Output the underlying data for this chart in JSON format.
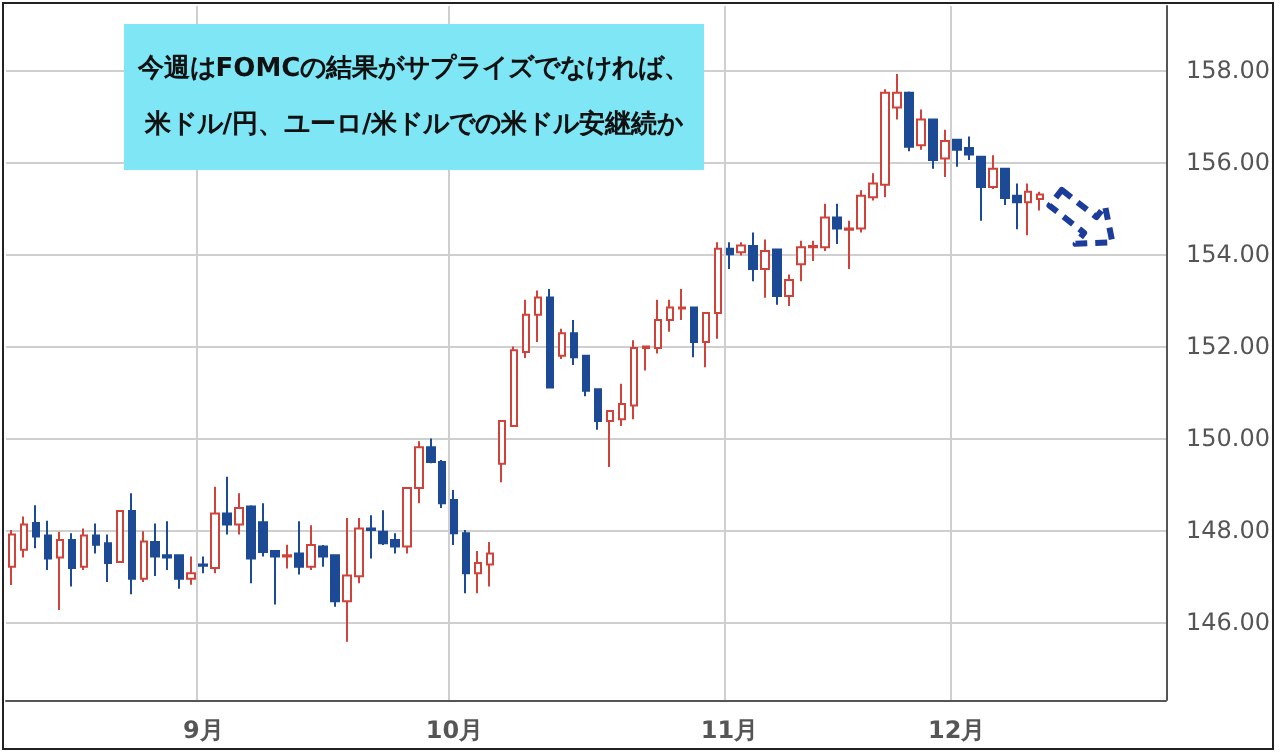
{
  "chart_data": {
    "type": "candlestick",
    "annotations": [
      "今週はFOMCの結果がサプライズでなければ、",
      "米ドル/円、ユーロ/米ドルでの米ドル安継続か"
    ],
    "categories": [
      null,
      null,
      null,
      null,
      null,
      null,
      null,
      null,
      null,
      null,
      null,
      null,
      null,
      null,
      null,
      null,
      "9月",
      null,
      null,
      null,
      null,
      null,
      null,
      null,
      null,
      null,
      null,
      null,
      null,
      null,
      null,
      null,
      null,
      null,
      null,
      null,
      null,
      "10月",
      null,
      null,
      null,
      null,
      null,
      null,
      null,
      null,
      null,
      null,
      null,
      null,
      null,
      null,
      null,
      null,
      null,
      null,
      null,
      null,
      null,
      null,
      "11月",
      null,
      null,
      null,
      null,
      null,
      null,
      null,
      null,
      null,
      null,
      null,
      null,
      null,
      null,
      null,
      null,
      null,
      null,
      "12月",
      null,
      null,
      null,
      null,
      null,
      null,
      null,
      null,
      null,
      null,
      null,
      null,
      null,
      null,
      null,
      null,
      null
    ],
    "colors": [
      "#d0433a",
      "#d0433a",
      "#1c4a94",
      "#1c4a94",
      "#d0433a",
      "#1c4a94",
      "#d0433a",
      "#1c4a94",
      "#1c4a94",
      "#d0433a",
      "#1c4a94",
      "#d0433a",
      "#1c4a94",
      "#1c4a94",
      "#1c4a94",
      "#d0433a",
      "#1c4a94",
      "#d0433a",
      "#1c4a94",
      "#d0433a",
      "#1c4a94",
      "#1c4a94",
      "#1c4a94",
      "#d0433a",
      "#1c4a94",
      "#d0433a",
      "#1c4a94",
      "#1c4a94",
      "#d0433a",
      "#d0433a",
      "#1c4a94",
      "#1c4a94",
      "#1c4a94",
      "#d0433a",
      "#d0433a",
      "#1c4a94",
      "#1c4a94",
      "#1c4a94",
      "#1c4a94",
      "#d0433a",
      "#d0433a",
      "#d0433a",
      "#d0433a",
      "#d0433a",
      "#d0433a",
      "#1c4a94",
      "#d0433a",
      "#1c4a94",
      "#1c4a94",
      "#1c4a94",
      "#d0433a",
      "#d0433a",
      "#d0433a",
      "#d0433a",
      "#d0433a",
      "#d0433a",
      "#d0433a",
      "#1c4a94",
      "#d0433a",
      "#d0433a",
      "#1c4a94",
      "#d0433a",
      "#1c4a94",
      "#d0433a",
      "#1c4a94",
      "#d0433a",
      "#d0433a",
      "#d0433a",
      "#d0433a",
      "#1c4a94",
      "#d0433a",
      "#d0433a",
      "#d0433a",
      "#d0433a",
      "#d0433a",
      "#1c4a94",
      "#d0433a",
      "#1c4a94",
      "#d0433a",
      "#1c4a94",
      "#1c4a94",
      "#1c4a94",
      "#d0433a",
      "#1c4a94",
      "#1c4a94",
      "#d0433a",
      "#d0433a",
      null,
      null,
      null,
      null,
      null,
      null,
      null,
      null,
      null,
      null
    ],
    "ohlc": [
      [
        147.2,
        148.0,
        146.8,
        147.9
      ],
      [
        147.57,
        148.29,
        147.4,
        148.12
      ],
      [
        148.15,
        148.54,
        147.6,
        147.86
      ],
      [
        147.88,
        148.2,
        147.13,
        147.38
      ],
      [
        147.4,
        147.96,
        146.26,
        147.78
      ],
      [
        147.78,
        147.93,
        146.77,
        147.17
      ],
      [
        147.2,
        148.03,
        147.13,
        147.88
      ],
      [
        147.88,
        148.14,
        147.49,
        147.68
      ],
      [
        147.71,
        147.9,
        146.87,
        147.28
      ],
      [
        147.3,
        148.41,
        147.28,
        148.41
      ],
      [
        148.41,
        148.8,
        146.6,
        146.94
      ],
      [
        146.94,
        147.97,
        146.87,
        147.75
      ],
      [
        147.74,
        148.14,
        147.0,
        147.42
      ],
      [
        147.45,
        148.19,
        147.13,
        147.4
      ],
      [
        147.45,
        147.45,
        146.72,
        146.94
      ],
      [
        146.94,
        147.42,
        146.81,
        147.06
      ],
      [
        147.25,
        147.42,
        147.06,
        147.22
      ],
      [
        147.17,
        148.94,
        147.06,
        148.36
      ],
      [
        148.36,
        149.16,
        147.9,
        148.12
      ],
      [
        148.12,
        148.8,
        147.9,
        148.48
      ],
      [
        148.51,
        148.54,
        146.84,
        147.38
      ],
      [
        148.17,
        148.58,
        147.42,
        147.52
      ],
      [
        147.54,
        147.54,
        146.38,
        147.42
      ],
      [
        147.42,
        147.68,
        147.16,
        147.45
      ],
      [
        147.49,
        148.19,
        147.03,
        147.2
      ],
      [
        147.2,
        148.1,
        147.13,
        147.67
      ],
      [
        147.64,
        147.67,
        147.2,
        147.42
      ],
      [
        147.45,
        147.45,
        146.33,
        146.45
      ],
      [
        146.45,
        148.26,
        145.57,
        147.01
      ],
      [
        146.99,
        148.26,
        146.84,
        148.03
      ],
      [
        148.03,
        148.32,
        147.38,
        148.0
      ],
      [
        147.96,
        148.43,
        147.67,
        147.71
      ],
      [
        147.78,
        147.93,
        147.49,
        147.64
      ],
      [
        147.64,
        148.91,
        147.49,
        148.91
      ],
      [
        148.91,
        149.93,
        148.58,
        149.8
      ],
      [
        149.8,
        149.99,
        149.45,
        149.48
      ],
      [
        149.48,
        149.52,
        148.48,
        148.58
      ],
      [
        148.65,
        148.87,
        147.67,
        147.93
      ],
      [
        147.93,
        148.0,
        146.62,
        147.06
      ],
      [
        147.06,
        147.54,
        146.62,
        147.28
      ],
      [
        147.25,
        147.74,
        146.77,
        147.49
      ],
      [
        149.44,
        150.37,
        149.04,
        150.37
      ],
      [
        150.26,
        151.99,
        150.26,
        151.91
      ],
      [
        151.87,
        153.01,
        151.74,
        152.68
      ],
      [
        152.68,
        153.21,
        152.09,
        153.06
      ],
      [
        153.06,
        153.24,
        151.1,
        151.1
      ],
      [
        151.79,
        152.38,
        151.72,
        152.28
      ],
      [
        152.28,
        152.57,
        151.59,
        151.76
      ],
      [
        151.79,
        151.79,
        150.91,
        151.03
      ],
      [
        151.06,
        151.06,
        150.18,
        150.37
      ],
      [
        150.37,
        150.59,
        149.37,
        150.59
      ],
      [
        150.41,
        151.18,
        150.26,
        150.74
      ],
      [
        150.71,
        152.13,
        150.41,
        151.96
      ],
      [
        151.96,
        151.99,
        151.47,
        151.99
      ],
      [
        151.96,
        153.01,
        151.84,
        152.57
      ],
      [
        152.57,
        153.01,
        152.31,
        152.84
      ],
      [
        152.82,
        153.24,
        152.57,
        152.84
      ],
      [
        152.84,
        152.84,
        151.76,
        152.09
      ],
      [
        152.09,
        152.72,
        151.54,
        152.72
      ],
      [
        152.72,
        154.26,
        152.16,
        154.12
      ],
      [
        154.12,
        154.26,
        153.68,
        154.0
      ],
      [
        154.04,
        154.26,
        153.97,
        154.19
      ],
      [
        154.18,
        154.47,
        153.41,
        153.68
      ],
      [
        153.68,
        154.32,
        153.05,
        154.07
      ],
      [
        154.1,
        154.1,
        152.9,
        153.09
      ],
      [
        153.09,
        153.56,
        152.87,
        153.44
      ],
      [
        153.78,
        154.29,
        153.41,
        154.15
      ],
      [
        154.15,
        154.29,
        153.85,
        154.18
      ],
      [
        154.15,
        155.1,
        154.07,
        154.8
      ],
      [
        154.8,
        155.1,
        154.22,
        154.56
      ],
      [
        154.53,
        154.73,
        153.68,
        154.56
      ],
      [
        154.56,
        155.39,
        154.47,
        155.27
      ],
      [
        155.24,
        155.76,
        155.17,
        155.54
      ],
      [
        155.51,
        157.59,
        155.24,
        157.51
      ],
      [
        157.19,
        157.92,
        156.93,
        157.51
      ],
      [
        157.51,
        157.54,
        156.24,
        156.34
      ],
      [
        156.37,
        157.15,
        156.27,
        156.93
      ],
      [
        156.93,
        156.93,
        155.86,
        156.05
      ],
      [
        156.08,
        156.71,
        155.68,
        156.46
      ],
      [
        156.49,
        156.49,
        155.9,
        156.27
      ],
      [
        156.31,
        156.56,
        156.05,
        156.17
      ],
      [
        156.12,
        156.12,
        154.73,
        155.46
      ],
      [
        155.46,
        156.15,
        155.42,
        155.86
      ],
      [
        155.86,
        155.86,
        155.07,
        155.22
      ],
      [
        155.27,
        155.54,
        154.54,
        155.13
      ],
      [
        155.13,
        155.54,
        154.41,
        155.36
      ],
      [
        155.2,
        155.36,
        154.95,
        155.3
      ],
      null,
      null,
      null,
      null,
      null,
      null,
      null,
      null,
      null,
      null
    ],
    "ylim": [
      144.3,
      159.4
    ],
    "yticks": [
      {
        "value": 146,
        "label": "146.00"
      },
      {
        "value": 148,
        "label": "148.00"
      },
      {
        "value": 150,
        "label": "150.00"
      },
      {
        "value": 152,
        "label": "152.00"
      },
      {
        "value": 154,
        "label": "154.00"
      },
      {
        "value": 156,
        "label": "156.00"
      },
      {
        "value": 158,
        "label": "158.00"
      }
    ],
    "grid": true
  }
}
